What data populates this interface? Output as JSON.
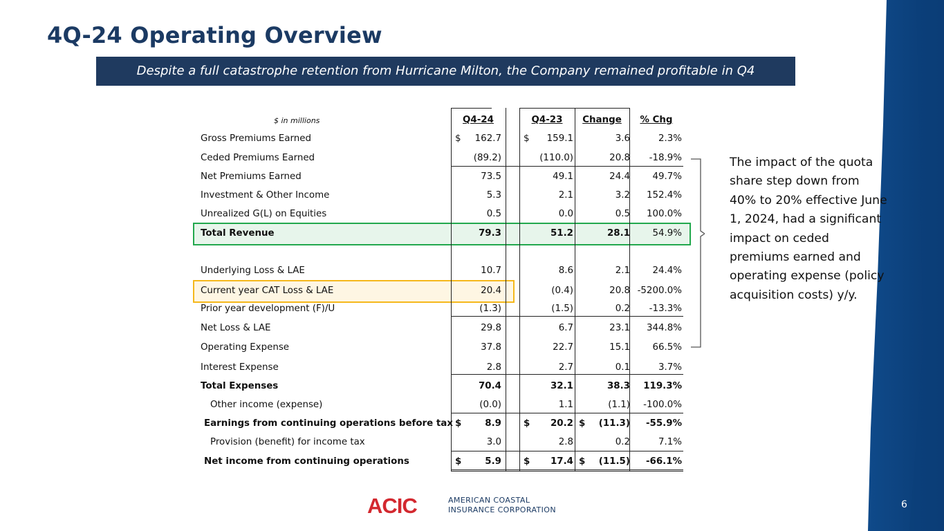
{
  "slide": {
    "title": "4Q-24 Operating Overview",
    "banner": "Despite a full catastrophe retention from Hurricane Milton, the Company remained profitable in Q4",
    "page_number": "6"
  },
  "table": {
    "units_label": "$ in millions",
    "headers": [
      "Q4-24",
      "Q4-23",
      "Change",
      "% Chg"
    ],
    "rows": [
      {
        "label": "Gross Premiums Earned",
        "q424": "162.7",
        "q423": "159.1",
        "change": "3.6",
        "pct": "2.3%",
        "d1": "$",
        "d2": "$",
        "d3": ""
      },
      {
        "label": "Ceded Premiums Earned",
        "q424": "(89.2)",
        "q423": "(110.0)",
        "change": "20.8",
        "pct": "-18.9%"
      },
      {
        "label": "Net Premiums Earned",
        "q424": "73.5",
        "q423": "49.1",
        "change": "24.4",
        "pct": "49.7%"
      },
      {
        "label": "Investment & Other Income",
        "q424": "5.3",
        "q423": "2.1",
        "change": "3.2",
        "pct": "152.4%"
      },
      {
        "label": "Unrealized G(L) on Equities",
        "q424": "0.5",
        "q423": "0.0",
        "change": "0.5",
        "pct": "100.0%"
      },
      {
        "label": "Total Revenue",
        "q424": "79.3",
        "q423": "51.2",
        "change": "28.1",
        "pct": "54.9%"
      },
      {
        "label": "Underlying Loss & LAE",
        "q424": "10.7",
        "q423": "8.6",
        "change": "2.1",
        "pct": "24.4%"
      },
      {
        "label": "Current year CAT Loss & LAE",
        "q424": "20.4",
        "q423": "(0.4)",
        "change": "20.8",
        "pct": "-5200.0%"
      },
      {
        "label": "Prior year development (F)/U",
        "q424": "(1.3)",
        "q423": "(1.5)",
        "change": "0.2",
        "pct": "-13.3%"
      },
      {
        "label": "Net Loss & LAE",
        "q424": "29.8",
        "q423": "6.7",
        "change": "23.1",
        "pct": "344.8%"
      },
      {
        "label": "Operating Expense",
        "q424": "37.8",
        "q423": "22.7",
        "change": "15.1",
        "pct": "66.5%"
      },
      {
        "label": "Interest Expense",
        "q424": "2.8",
        "q423": "2.7",
        "change": "0.1",
        "pct": "3.7%"
      },
      {
        "label": "Total Expenses",
        "q424": "70.4",
        "q423": "32.1",
        "change": "38.3",
        "pct": "119.3%"
      },
      {
        "label": "Other income (expense)",
        "q424": "(0.0)",
        "q423": "1.1",
        "change": "(1.1)",
        "pct": "-100.0%"
      },
      {
        "label": "Earnings from continuing operations before tax",
        "q424": "8.9",
        "q423": "20.2",
        "change": "(11.3)",
        "pct": "-55.9%",
        "d1": "$",
        "d2": "$",
        "d3": "$"
      },
      {
        "label": "Provision (benefit) for income tax",
        "q424": "3.0",
        "q423": "2.8",
        "change": "0.2",
        "pct": "7.1%"
      },
      {
        "label": "Net income from continuing operations",
        "q424": "5.9",
        "q423": "17.4",
        "change": "(11.5)",
        "pct": "-66.1%",
        "d1": "$",
        "d2": "$",
        "d3": "$"
      }
    ]
  },
  "note": "The impact of the quota share step down from 40% to 20% effective June 1, 2024, had a significant impact on ceded premiums earned and operating expense (policy acquisition costs) y/y.",
  "footer": {
    "logo_text": "ACIC",
    "company_line1": "AMERICAN COASTAL",
    "company_line2": "INSURANCE CORPORATION"
  },
  "colors": {
    "title": "#1b3a63",
    "banner_bg": "#1f3a5f",
    "band": "#0d4f8f",
    "highlight_green": "#22a84d",
    "highlight_yellow": "#f5b81c",
    "logo_red": "#d3282f"
  }
}
